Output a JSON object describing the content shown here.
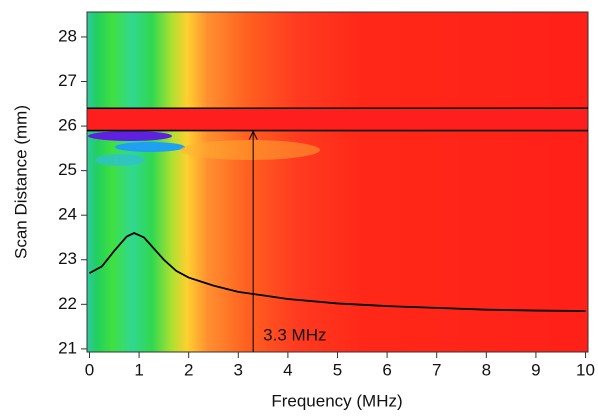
{
  "chart_data": {
    "type": "line",
    "x_label": "Frequency (MHz)",
    "y_label": "Scan Distance (mm)",
    "x": [
      0,
      0.25,
      0.5,
      0.75,
      0.9,
      1.1,
      1.3,
      1.5,
      1.75,
      2,
      2.5,
      3,
      3.5,
      4,
      5,
      6,
      7,
      8,
      9,
      10
    ],
    "series": [
      {
        "color": "#000000",
        "values": [
          22.7,
          22.85,
          23.2,
          23.52,
          23.6,
          23.5,
          23.25,
          23.0,
          22.75,
          22.6,
          22.42,
          22.28,
          22.2,
          22.12,
          22.02,
          21.96,
          21.92,
          21.88,
          21.86,
          21.85
        ]
      }
    ],
    "hlines": [
      26.4,
      25.9
    ],
    "annotation": {
      "text": "3.3 MHz",
      "x": 3.3,
      "y": 25.9
    },
    "xlim": [
      -0.05,
      10.05
    ],
    "ylim": [
      20.93,
      28.56
    ],
    "xticks": [
      0,
      1,
      2,
      3,
      4,
      5,
      6,
      7,
      8,
      9,
      10
    ],
    "yticks": [
      21,
      22,
      23,
      24,
      25,
      26,
      27,
      28
    ]
  }
}
